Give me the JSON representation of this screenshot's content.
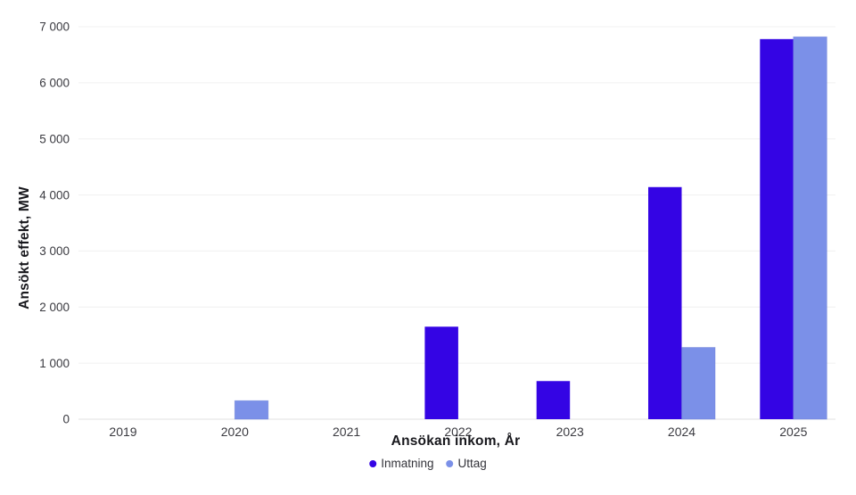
{
  "chart_data": {
    "type": "bar",
    "title": "",
    "xlabel": "Ansökan inkom, År",
    "ylabel": "Ansökt effekt, MW",
    "categories": [
      "2019",
      "2020",
      "2021",
      "2022",
      "2023",
      "2024",
      "2025"
    ],
    "series": [
      {
        "name": "Inmatning",
        "color": "#3404e4",
        "values": [
          0,
          0,
          0,
          1650,
          680,
          4140,
          6780
        ]
      },
      {
        "name": "Uttag",
        "color": "#7b90e8",
        "values": [
          0,
          330,
          0,
          0,
          0,
          1280,
          6820
        ]
      }
    ],
    "ylim": [
      0,
      7000
    ],
    "ytick_step": 1000,
    "ytick_labels": [
      "0",
      "1 000",
      "2 000",
      "3 000",
      "4 000",
      "5 000",
      "6 000",
      "7 000"
    ],
    "grid": true,
    "legend_position": "bottom",
    "colors": {
      "gridline": "#f0f0f0",
      "axis_line": "#e2e2e2",
      "tick_text": "#3a3a40",
      "title_text": "#17171c",
      "uttag_stroke": "#6d82d6"
    }
  }
}
